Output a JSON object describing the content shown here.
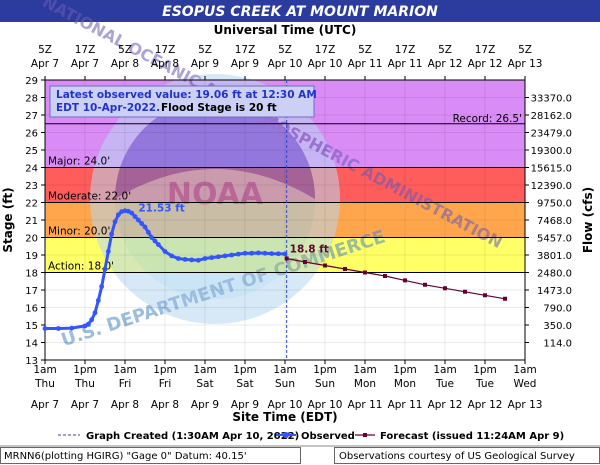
{
  "chart_data": {
    "type": "line",
    "title": "ESOPUS CREEK AT MOUNT MARION",
    "top_axis_title": "Universal Time (UTC)",
    "bottom_axis_title": "Site Time (EDT)",
    "ylabel": "Stage (ft)",
    "y2label": "Flow (cfs)",
    "ylim": [
      13,
      29
    ],
    "xlim_hours": [
      0,
      144
    ],
    "y_ticks": [
      13,
      14,
      15,
      16,
      17,
      18,
      19,
      20,
      21,
      22,
      23,
      24,
      25,
      26,
      27,
      28,
      29
    ],
    "flow_ticks": [
      {
        "stage": 28,
        "label": "33370.0"
      },
      {
        "stage": 27,
        "label": "28162.0"
      },
      {
        "stage": 26,
        "label": "23479.0"
      },
      {
        "stage": 25,
        "label": "19300.0"
      },
      {
        "stage": 24,
        "label": "15615.0"
      },
      {
        "stage": 23,
        "label": "12390.0"
      },
      {
        "stage": 22,
        "label": "9750.0"
      },
      {
        "stage": 21,
        "label": "7468.0"
      },
      {
        "stage": 20,
        "label": "5457.0"
      },
      {
        "stage": 19,
        "label": "3801.0"
      },
      {
        "stage": 18,
        "label": "2480.0"
      },
      {
        "stage": 17,
        "label": "1473.0"
      },
      {
        "stage": 16,
        "label": "790.0"
      },
      {
        "stage": 15,
        "label": "350.0"
      },
      {
        "stage": 14,
        "label": "114.0"
      }
    ],
    "bottom_ticks": [
      {
        "hours": 0,
        "time": "1am",
        "day": "Thu",
        "date": "Apr 7"
      },
      {
        "hours": 12,
        "time": "1pm",
        "day": "Thu",
        "date": "Apr 7"
      },
      {
        "hours": 24,
        "time": "1am",
        "day": "Fri",
        "date": "Apr 8"
      },
      {
        "hours": 36,
        "time": "1pm",
        "day": "Fri",
        "date": "Apr 8"
      },
      {
        "hours": 48,
        "time": "1am",
        "day": "Sat",
        "date": "Apr 9"
      },
      {
        "hours": 60,
        "time": "1pm",
        "day": "Sat",
        "date": "Apr 9"
      },
      {
        "hours": 72,
        "time": "1am",
        "day": "Sun",
        "date": "Apr 10"
      },
      {
        "hours": 84,
        "time": "1pm",
        "day": "Sun",
        "date": "Apr 10"
      },
      {
        "hours": 96,
        "time": "1am",
        "day": "Mon",
        "date": "Apr 11"
      },
      {
        "hours": 108,
        "time": "1pm",
        "day": "Mon",
        "date": "Apr 11"
      },
      {
        "hours": 120,
        "time": "1am",
        "day": "Tue",
        "date": "Apr 12"
      },
      {
        "hours": 132,
        "time": "1pm",
        "day": "Tue",
        "date": "Apr 12"
      },
      {
        "hours": 144,
        "time": "1am",
        "day": "Wed",
        "date": "Apr 13"
      }
    ],
    "top_ticks": [
      {
        "hours": 0,
        "time": "5Z",
        "date": "Apr 7"
      },
      {
        "hours": 12,
        "time": "17Z",
        "date": "Apr 7"
      },
      {
        "hours": 24,
        "time": "5Z",
        "date": "Apr 8"
      },
      {
        "hours": 36,
        "time": "17Z",
        "date": "Apr 8"
      },
      {
        "hours": 48,
        "time": "5Z",
        "date": "Apr 9"
      },
      {
        "hours": 60,
        "time": "17Z",
        "date": "Apr 9"
      },
      {
        "hours": 72,
        "time": "5Z",
        "date": "Apr 10"
      },
      {
        "hours": 84,
        "time": "17Z",
        "date": "Apr 10"
      },
      {
        "hours": 96,
        "time": "5Z",
        "date": "Apr 11"
      },
      {
        "hours": 108,
        "time": "17Z",
        "date": "Apr 11"
      },
      {
        "hours": 120,
        "time": "5Z",
        "date": "Apr 12"
      },
      {
        "hours": 132,
        "time": "17Z",
        "date": "Apr 12"
      },
      {
        "hours": 144,
        "time": "5Z",
        "date": "Apr 13"
      }
    ],
    "flood_bands": [
      {
        "name": "Action",
        "from": 13,
        "to": 18,
        "color": "#ffffff"
      },
      {
        "name": "Action",
        "from": 18,
        "to": 20,
        "color": "#ffff66"
      },
      {
        "name": "Minor",
        "from": 20,
        "to": 22,
        "color": "#ffa64d"
      },
      {
        "name": "Moderate",
        "from": 22,
        "to": 24,
        "color": "#ff5c5c"
      },
      {
        "name": "Major",
        "from": 24,
        "to": 29,
        "color": "#d98cf5"
      }
    ],
    "thresholds": [
      {
        "stage": 18.0,
        "label": "Action: 18.0'"
      },
      {
        "stage": 20.0,
        "label": "Minor: 20.0'"
      },
      {
        "stage": 22.0,
        "label": "Moderate: 22.0'"
      },
      {
        "stage": 24.0,
        "label": "Major: 24.0'"
      }
    ],
    "record": {
      "stage": 26.5,
      "label": "Record: 26.5'"
    },
    "latest_box": {
      "line1": "Latest observed value: 19.06 ft at 12:30 AM",
      "line2a": "EDT 10-Apr-2022.",
      "line2b": "Flood Stage is 20 ft"
    },
    "peak_label": {
      "text": "21.53 ft",
      "hours": 28,
      "stage": 21.53
    },
    "forecast_label": {
      "text": "18.8 ft",
      "hours": 72.5,
      "stage": 18.8
    },
    "graph_created_hours": 72.5,
    "series": [
      {
        "name": "Observed",
        "color": "#3355ff",
        "x": [
          0,
          4,
          8,
          12,
          13,
          14,
          15,
          16,
          17,
          18,
          19,
          20,
          21,
          22,
          23,
          24,
          25,
          26,
          27,
          28,
          29,
          30,
          31,
          32,
          33,
          34,
          36,
          38,
          40,
          42,
          44,
          46,
          48,
          50,
          52,
          54,
          56,
          58,
          60,
          62,
          64,
          66,
          68,
          70,
          72
        ],
        "y": [
          14.8,
          14.8,
          14.82,
          14.95,
          15.05,
          15.3,
          15.7,
          16.4,
          17.2,
          18.2,
          19.2,
          20.2,
          20.9,
          21.3,
          21.48,
          21.53,
          21.5,
          21.4,
          21.2,
          21.0,
          20.8,
          20.6,
          20.3,
          20.0,
          19.8,
          19.6,
          19.2,
          18.95,
          18.8,
          18.75,
          18.72,
          18.7,
          18.8,
          18.85,
          18.9,
          18.95,
          19.0,
          19.05,
          19.1,
          19.1,
          19.12,
          19.1,
          19.08,
          19.07,
          19.06
        ]
      },
      {
        "name": "Forecast",
        "color": "#660033",
        "x": [
          72.5,
          78,
          84,
          90,
          96,
          102,
          108,
          114,
          120,
          126,
          132,
          138
        ],
        "y": [
          18.8,
          18.6,
          18.4,
          18.2,
          18.0,
          17.8,
          17.55,
          17.3,
          17.1,
          16.9,
          16.7,
          16.5
        ]
      }
    ],
    "legend": {
      "created": "Graph Created (1:30AM Apr 10, 2022)",
      "observed": "Observed",
      "forecast": "Forecast (issued 11:24AM Apr 9)"
    },
    "footer": {
      "left": "MRNN6(plotting HGIRG) \"Gage 0\" Datum: 40.15'",
      "right": "Observations courtesy of US Geological Survey"
    },
    "watermark": {
      "top_text": "NATIONAL OCEANIC AND ATMOSPHERIC ADMINISTRATION",
      "bottom_text": "U.S. DEPARTMENT OF COMMERCE",
      "center": "NOAA"
    }
  }
}
